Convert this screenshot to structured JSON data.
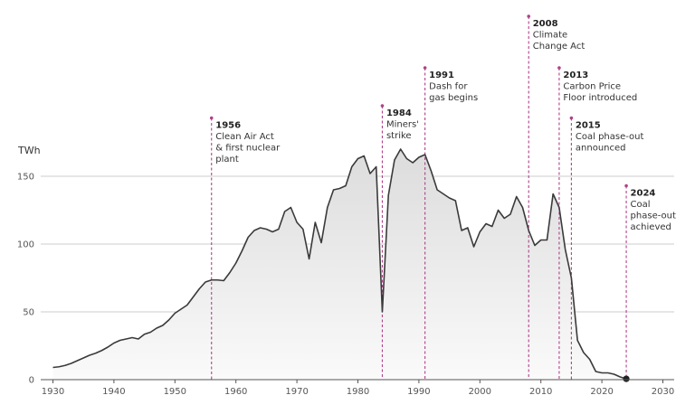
{
  "chart_data": {
    "type": "area",
    "title": "",
    "ylabel": "TWh",
    "xlabel": "",
    "xlim": [
      1929,
      2032
    ],
    "ylim": [
      0,
      175
    ],
    "x_ticks": [
      1930,
      1940,
      1950,
      1960,
      1970,
      1980,
      1990,
      2000,
      2010,
      2020,
      2030
    ],
    "y_ticks": [
      0,
      50,
      100,
      150
    ],
    "grid": "horizontal",
    "colors": {
      "line": "#3a3a3a",
      "area_top": "#dcdcdc",
      "area_bottom": "#fafafa",
      "marker": "#b0408a",
      "grid": "#cccccc",
      "end_point": "#222222"
    },
    "series": [
      {
        "x": [
          1930,
          1931,
          1932,
          1933,
          1934,
          1935,
          1936,
          1937,
          1938,
          1939,
          1940,
          1941,
          1942,
          1943,
          1944,
          1945,
          1946,
          1947,
          1948,
          1949,
          1950,
          1951,
          1952,
          1953,
          1954,
          1955,
          1956,
          1957,
          1958,
          1959,
          1960,
          1961,
          1962,
          1963,
          1964,
          1965,
          1966,
          1967,
          1968,
          1969,
          1970,
          1971,
          1972,
          1973,
          1974,
          1975,
          1976,
          1977,
          1978,
          1979,
          1980,
          1981,
          1982,
          1983,
          1984,
          1985,
          1986,
          1987,
          1988,
          1989,
          1990,
          1991,
          1992,
          1993,
          1994,
          1995,
          1996,
          1997,
          1998,
          1999,
          2000,
          2001,
          2002,
          2003,
          2004,
          2005,
          2006,
          2007,
          2008,
          2009,
          2010,
          2011,
          2012,
          2013,
          2014,
          2015,
          2016,
          2017,
          2018,
          2019,
          2020,
          2021,
          2022,
          2023,
          2024
        ],
        "values": [
          9,
          9.5,
          10.5,
          12,
          14,
          16,
          18,
          19.5,
          21.5,
          24,
          27,
          29,
          30,
          31,
          30,
          33.5,
          35,
          38,
          40,
          44,
          49,
          52,
          55,
          61,
          67,
          72,
          73.5,
          73.5,
          73,
          79,
          86,
          95,
          105,
          110,
          112,
          111,
          109,
          111,
          124,
          127,
          116,
          111,
          89,
          116,
          101,
          127,
          140,
          141,
          143,
          157,
          163,
          165,
          152,
          157,
          50,
          136,
          162,
          170,
          163,
          160,
          164,
          166,
          154,
          140,
          137,
          134,
          132,
          110,
          112,
          98,
          109,
          115,
          113,
          125,
          119,
          122,
          135,
          127,
          110,
          99,
          103,
          103,
          137,
          127,
          96,
          75,
          29,
          20,
          15,
          6,
          5,
          5,
          4,
          2,
          0.6
        ],
        "end_point": {
          "x": 2024,
          "value": 0.6
        }
      }
    ],
    "annotations": [
      {
        "x": 1956,
        "line_top": 193,
        "lines": [
          "1956",
          "Clean Air Act",
          "& first nuclear",
          "plant"
        ]
      },
      {
        "x": 1984,
        "line_top": 202,
        "lines": [
          "1984",
          "Miners'",
          "strike"
        ]
      },
      {
        "x": 1991,
        "line_top": 230,
        "lines": [
          "1991",
          "Dash for",
          "gas begins"
        ]
      },
      {
        "x": 2008,
        "line_top": 268,
        "lines": [
          "2008",
          "Climate",
          "Change Act"
        ]
      },
      {
        "x": 2013,
        "line_top": 230,
        "lines": [
          "2013",
          "Carbon Price",
          "Floor introduced"
        ]
      },
      {
        "x": 2015,
        "line_top": 193,
        "lines": [
          "2015",
          "Coal phase-out",
          "announced"
        ]
      },
      {
        "x": 2024,
        "line_top": 143,
        "lines": [
          "2024",
          "Coal",
          "phase-out",
          "achieved"
        ]
      }
    ]
  }
}
